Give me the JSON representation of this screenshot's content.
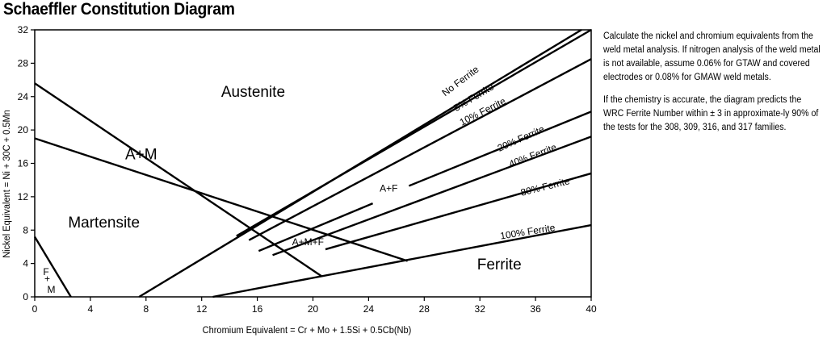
{
  "title": "Schaeffler Constitution Diagram",
  "notes": [
    "Calculate the nickel and chromium equivalents from the weld metal analysis. If nitrogen analysis of the weld metal is not available, assume 0.06% for GTAW and covered electrodes or 0.08% for GMAW weld metals.",
    "If the chemistry is accurate, the diagram predicts the WRC Ferrite Number within ± 3 in approximate-ly 90% of the tests for the 308, 309, 316, and 317 families."
  ],
  "chart_data": {
    "type": "diagram",
    "xlabel": "Chromium Equivalent = Cr + Mo + 1.5Si + 0.5Cb(Nb)",
    "ylabel": "Nickel Equivalent = Ni + 30C + 0.5Mn",
    "xlim": [
      0,
      40
    ],
    "ylim": [
      0,
      32
    ],
    "x_ticks": [
      0,
      4,
      8,
      12,
      16,
      20,
      24,
      28,
      32,
      36,
      40
    ],
    "y_ticks": [
      0,
      4,
      8,
      12,
      16,
      20,
      24,
      28,
      32
    ],
    "boundary_lines": [
      {
        "name": "martensite-ferrite-corner",
        "points": [
          [
            0,
            7.2
          ],
          [
            2.6,
            0
          ]
        ]
      },
      {
        "name": "austenite-martensite-upper",
        "points": [
          [
            0,
            25.6
          ],
          [
            20.6,
            2.5
          ]
        ]
      },
      {
        "name": "martensite-upper",
        "points": [
          [
            0,
            19
          ],
          [
            26.8,
            4.3
          ]
        ]
      },
      {
        "name": "no-ferrite",
        "points": [
          [
            7.5,
            0
          ],
          [
            39.3,
            32
          ]
        ]
      },
      {
        "name": "5-percent-ferrite",
        "points": [
          [
            14.5,
            7.3
          ],
          [
            40,
            32
          ]
        ]
      },
      {
        "name": "10-percent-ferrite",
        "points": [
          [
            15.4,
            6.8
          ],
          [
            40,
            28.5
          ]
        ]
      },
      {
        "name": "20-percent-ferrite-lower",
        "points": [
          [
            16.1,
            5.5
          ],
          [
            24.3,
            11.2
          ]
        ]
      },
      {
        "name": "20-percent-ferrite-upper",
        "points": [
          [
            26.9,
            13.3
          ],
          [
            40,
            22.2
          ]
        ]
      },
      {
        "name": "40-percent-ferrite",
        "points": [
          [
            17.1,
            5
          ],
          [
            40,
            19.2
          ]
        ]
      },
      {
        "name": "80-percent-ferrite",
        "points": [
          [
            20.9,
            5.7
          ],
          [
            40,
            14.8
          ]
        ]
      },
      {
        "name": "100-percent-ferrite",
        "points": [
          [
            12.8,
            0
          ],
          [
            40,
            8.6
          ]
        ]
      }
    ],
    "region_labels": [
      {
        "text": "Austenite",
        "x": 13.4,
        "y": 24
      },
      {
        "text": "A+M",
        "x": 6.5,
        "y": 16.5
      },
      {
        "text": "Martensite",
        "x": 2.4,
        "y": 8.3
      },
      {
        "text": "Ferrite",
        "x": 31.8,
        "y": 3.3
      },
      {
        "text": "A+F",
        "x": 24.8,
        "y": 12.6
      },
      {
        "text": "A+M+F",
        "x": 18.5,
        "y": 6.2
      },
      {
        "text": "F",
        "x": 0.6,
        "y": 2.6
      },
      {
        "text": "+",
        "x": 0.7,
        "y": 1.8
      },
      {
        "text": "M",
        "x": 0.9,
        "y": 0.5
      }
    ],
    "ferrite_labels": [
      {
        "text": "No Ferrite",
        "x": 29.5,
        "y": 24,
        "angle": -37
      },
      {
        "text": "5% Ferrite",
        "x": 30.3,
        "y": 22.2,
        "angle": -31
      },
      {
        "text": "10% Ferrite",
        "x": 30.7,
        "y": 20.5,
        "angle": -27
      },
      {
        "text": "20% Ferrite",
        "x": 33.4,
        "y": 17.4,
        "angle": -24
      },
      {
        "text": "40% Ferrite",
        "x": 34.2,
        "y": 15.5,
        "angle": -21
      },
      {
        "text": "80% Ferrite",
        "x": 35.0,
        "y": 12.1,
        "angle": -14
      },
      {
        "text": "100% Ferrite",
        "x": 33.5,
        "y": 6.9,
        "angle": -9
      }
    ]
  }
}
